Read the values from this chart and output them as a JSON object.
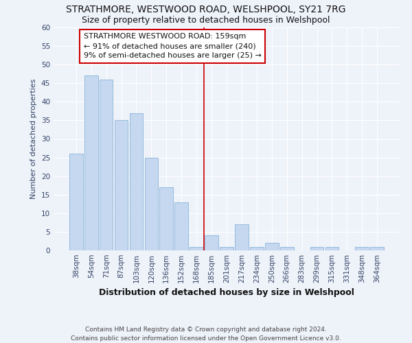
{
  "title": "STRATHMORE, WESTWOOD ROAD, WELSHPOOL, SY21 7RG",
  "subtitle": "Size of property relative to detached houses in Welshpool",
  "xlabel": "Distribution of detached houses by size in Welshpool",
  "ylabel": "Number of detached properties",
  "footer1": "Contains HM Land Registry data © Crown copyright and database right 2024.",
  "footer2": "Contains public sector information licensed under the Open Government Licence v3.0.",
  "categories": [
    "38sqm",
    "54sqm",
    "71sqm",
    "87sqm",
    "103sqm",
    "120sqm",
    "136sqm",
    "152sqm",
    "168sqm",
    "185sqm",
    "201sqm",
    "217sqm",
    "234sqm",
    "250sqm",
    "266sqm",
    "283sqm",
    "299sqm",
    "315sqm",
    "331sqm",
    "348sqm",
    "364sqm"
  ],
  "values": [
    26,
    47,
    46,
    35,
    37,
    25,
    17,
    13,
    1,
    4,
    1,
    7,
    1,
    2,
    1,
    0,
    1,
    1,
    0,
    1,
    1
  ],
  "bar_color": "#c5d8f0",
  "bar_edge_color": "#7aaad4",
  "bg_color": "#eef2f9",
  "grid_color": "#ffffff",
  "annotation_text": "STRATHMORE WESTWOOD ROAD: 159sqm\n← 91% of detached houses are smaller (240)\n9% of semi-detached houses are larger (25) →",
  "annotation_box_color": "#ffffff",
  "annotation_box_edge": "#cc0000",
  "vline_x": 8.5,
  "vline_color": "#cc0000",
  "ylim": [
    0,
    60
  ],
  "yticks": [
    0,
    5,
    10,
    15,
    20,
    25,
    30,
    35,
    40,
    45,
    50,
    55,
    60
  ]
}
